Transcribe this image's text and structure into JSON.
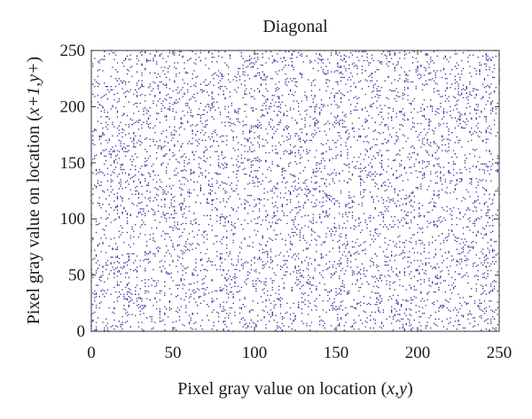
{
  "chart_data": {
    "type": "scatter",
    "title": "Diagonal",
    "xlabel_prefix": "Pixel gray value on location (",
    "xlabel_vars": "x,y",
    "xlabel_suffix": ")",
    "ylabel_prefix": "Pixel gray value on location (",
    "ylabel_vars": "x+1,y+",
    "ylabel_suffix": ")",
    "xlim": [
      0,
      250
    ],
    "ylim": [
      0,
      250
    ],
    "xticks": [
      "0",
      "50",
      "100",
      "150",
      "200",
      "250"
    ],
    "yticks": [
      "0",
      "50",
      "100",
      "150",
      "200",
      "250"
    ],
    "grid": false,
    "marker_color": "#2b2b9a",
    "point_count": 6000,
    "distribution": "uniform random over the full 0–250 × 0–250 range (dense, no correlation)"
  }
}
